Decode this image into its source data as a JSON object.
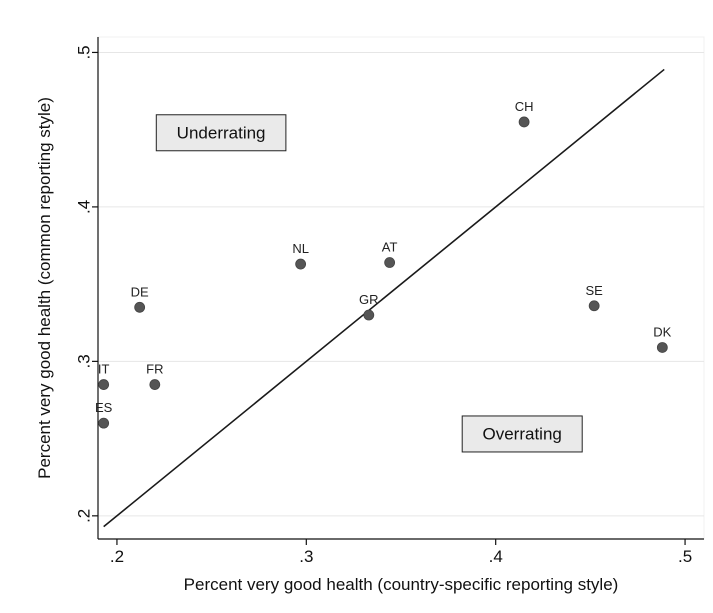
{
  "chart_data": {
    "type": "scatter",
    "xlabel": "Percent very good health (country-specific reporting style)",
    "ylabel": "Percent very good health (common reporting style)",
    "xlim": [
      0.19,
      0.51
    ],
    "ylim": [
      0.185,
      0.51
    ],
    "x_ticks": [
      {
        "value": 0.2,
        "label": ".2"
      },
      {
        "value": 0.3,
        "label": ".3"
      },
      {
        "value": 0.4,
        "label": ".4"
      },
      {
        "value": 0.5,
        "label": ".5"
      }
    ],
    "y_ticks": [
      {
        "value": 0.2,
        "label": ".2"
      },
      {
        "value": 0.3,
        "label": ".3"
      },
      {
        "value": 0.4,
        "label": ".4"
      },
      {
        "value": 0.5,
        "label": ".5"
      }
    ],
    "grid": "horizontal",
    "points": [
      {
        "label": "CH",
        "x": 0.415,
        "y": 0.455
      },
      {
        "label": "NL",
        "x": 0.297,
        "y": 0.363
      },
      {
        "label": "AT",
        "x": 0.344,
        "y": 0.364
      },
      {
        "label": "DE",
        "x": 0.212,
        "y": 0.335
      },
      {
        "label": "GR",
        "x": 0.333,
        "y": 0.33
      },
      {
        "label": "SE",
        "x": 0.452,
        "y": 0.336
      },
      {
        "label": "DK",
        "x": 0.488,
        "y": 0.309
      },
      {
        "label": "IT",
        "x": 0.193,
        "y": 0.285
      },
      {
        "label": "FR",
        "x": 0.22,
        "y": 0.285
      },
      {
        "label": "ES",
        "x": 0.193,
        "y": 0.26
      }
    ],
    "reference_line": {
      "x": [
        0.193,
        0.489
      ],
      "y": [
        0.193,
        0.489
      ]
    },
    "annotations": [
      {
        "text": "Underrating",
        "x": 0.255,
        "y": 0.448
      },
      {
        "text": "Overrating",
        "x": 0.414,
        "y": 0.253
      }
    ]
  }
}
